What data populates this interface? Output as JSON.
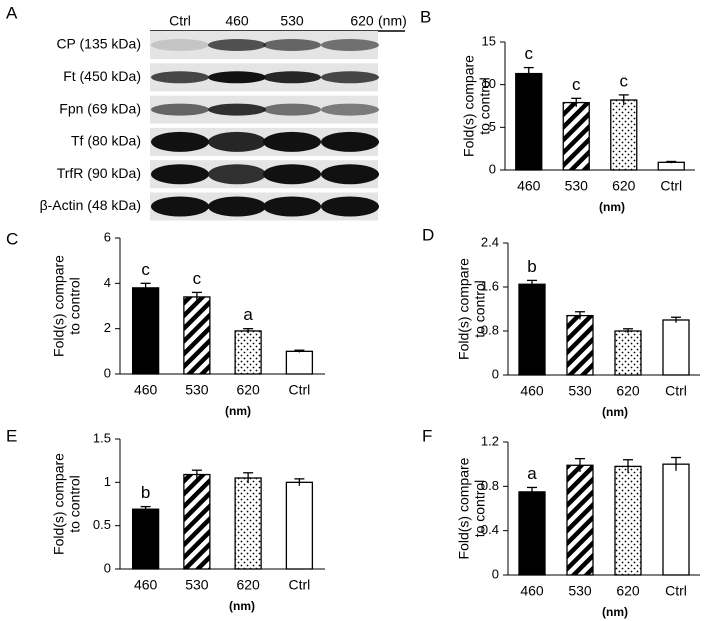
{
  "blot": {
    "panel_label": "A",
    "lanes": [
      "Ctrl",
      "460",
      "530",
      "620"
    ],
    "unit": "(nm)",
    "rows": [
      "CP (135 kDa)",
      "Ft (450 kDa)",
      "Fpn (69 kDa)",
      "Tf (80 kDa)",
      "TrfR (90 kDa)",
      "β-Actin (48 kDa)"
    ]
  },
  "chart_data": [
    {
      "type": "bar",
      "panel_label": "B",
      "y_label": [
        "Fold(s) compare",
        "to control"
      ],
      "x_label": "(nm)",
      "categories": [
        "460",
        "530",
        "620",
        "Ctrl"
      ],
      "values": [
        11.3,
        7.9,
        8.2,
        0.9
      ],
      "errors": [
        0.7,
        0.5,
        0.6,
        0.1
      ],
      "annotations": [
        "c",
        "c",
        "c",
        null
      ],
      "fills": [
        "solid",
        "hatch",
        "dots",
        "open"
      ],
      "ylim": [
        0,
        15
      ],
      "yticks": [
        0,
        5,
        10,
        15
      ]
    },
    {
      "type": "bar",
      "panel_label": "C",
      "y_label": [
        "Fold(s) compare",
        "to control"
      ],
      "x_label": "(nm)",
      "categories": [
        "460",
        "530",
        "620",
        "Ctrl"
      ],
      "values": [
        3.8,
        3.4,
        1.9,
        1.0
      ],
      "errors": [
        0.2,
        0.2,
        0.1,
        0.05
      ],
      "annotations": [
        "c",
        "c",
        "a",
        null
      ],
      "fills": [
        "solid",
        "hatch",
        "dots",
        "open"
      ],
      "ylim": [
        0,
        6
      ],
      "yticks": [
        0,
        2,
        4,
        6
      ]
    },
    {
      "type": "bar",
      "panel_label": "D",
      "y_label": [
        "Fold(s) compare",
        "to control"
      ],
      "x_label": "(nm)",
      "categories": [
        "460",
        "530",
        "620",
        "Ctrl"
      ],
      "values": [
        1.65,
        1.08,
        0.8,
        1.0
      ],
      "errors": [
        0.07,
        0.07,
        0.04,
        0.05
      ],
      "annotations": [
        "b",
        null,
        null,
        null
      ],
      "fills": [
        "solid",
        "hatch",
        "dots",
        "open"
      ],
      "ylim": [
        0,
        2.4
      ],
      "yticks": [
        0,
        0.8,
        1.6,
        2.4
      ]
    },
    {
      "type": "bar",
      "panel_label": "E",
      "y_label": [
        "Fold(s) compare",
        "to control"
      ],
      "x_label": "(nm)",
      "categories": [
        "460",
        "530",
        "620",
        "Ctrl"
      ],
      "values": [
        0.69,
        1.09,
        1.05,
        1.0
      ],
      "errors": [
        0.03,
        0.05,
        0.06,
        0.04
      ],
      "annotations": [
        "b",
        null,
        null,
        null
      ],
      "fills": [
        "solid",
        "hatch",
        "dots",
        "open"
      ],
      "ylim": [
        0,
        1.5
      ],
      "yticks": [
        0,
        0.5,
        1,
        1.5
      ]
    },
    {
      "type": "bar",
      "panel_label": "F",
      "y_label": [
        "Fold(s) compare",
        "to control"
      ],
      "x_label": "(nm)",
      "categories": [
        "460",
        "530",
        "620",
        "Ctrl"
      ],
      "values": [
        0.75,
        0.99,
        0.98,
        1.0
      ],
      "errors": [
        0.04,
        0.06,
        0.06,
        0.06
      ],
      "annotations": [
        "a",
        null,
        null,
        null
      ],
      "fills": [
        "solid",
        "hatch",
        "dots",
        "open"
      ],
      "ylim": [
        0,
        1.2
      ],
      "yticks": [
        0,
        0.4,
        0.8,
        1.2
      ]
    }
  ]
}
